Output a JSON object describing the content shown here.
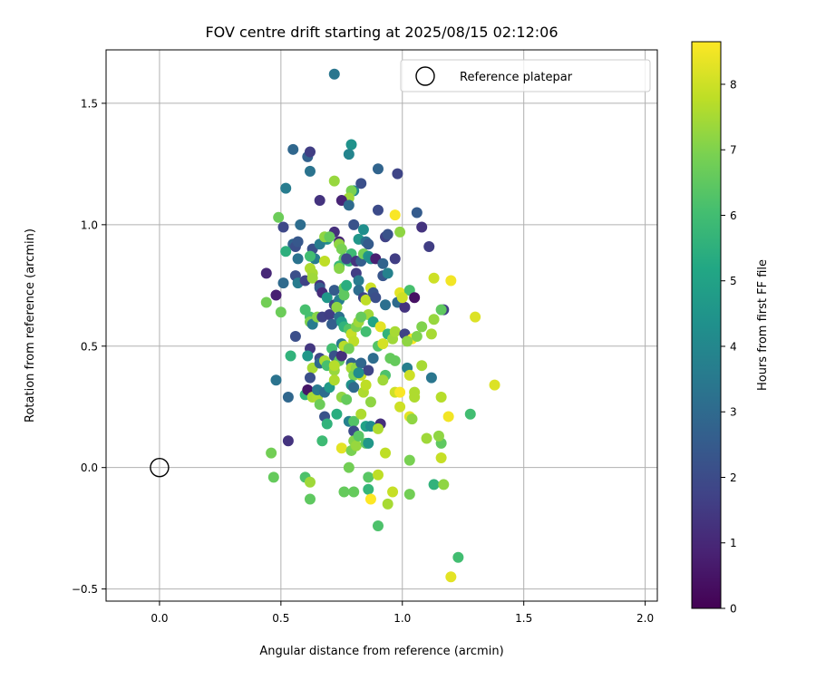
{
  "chart_data": {
    "type": "scatter",
    "title": "FOV centre drift starting at 2025/08/15 02:12:06",
    "xlabel": "Angular distance from reference (arcmin)",
    "ylabel": "Rotation from reference (arcmin)",
    "xlim": [
      -0.22,
      2.05
    ],
    "ylim": [
      -0.55,
      1.72
    ],
    "xticks": [
      "0.0",
      "0.5",
      "1.0",
      "1.5",
      "2.0"
    ],
    "yticks": [
      "−0.5",
      "0.0",
      "0.5",
      "1.0",
      "1.5"
    ],
    "grid": true,
    "legend": {
      "position": "upper-right",
      "entries": [
        "Reference platepar"
      ]
    },
    "reference_point": {
      "x": 0.0,
      "y": 0.0,
      "marker": "hollow-circle"
    },
    "colorbar": {
      "label": "Hours from first FF file",
      "colormap": "viridis",
      "range": [
        0,
        8.65
      ],
      "ticks": [
        "0",
        "1",
        "2",
        "3",
        "4",
        "5",
        "6",
        "7",
        "8"
      ]
    },
    "points": [
      [
        0.72,
        1.62,
        3.4
      ],
      [
        0.55,
        1.31,
        2.9
      ],
      [
        0.61,
        1.28,
        2.7
      ],
      [
        0.62,
        1.3,
        1.6
      ],
      [
        0.79,
        1.33,
        4.4
      ],
      [
        0.78,
        1.29,
        3.9
      ],
      [
        0.9,
        1.23,
        2.8
      ],
      [
        0.98,
        1.21,
        1.8
      ],
      [
        0.62,
        1.22,
        3.3
      ],
      [
        0.52,
        1.15,
        3.6
      ],
      [
        0.72,
        1.18,
        7.3
      ],
      [
        0.8,
        1.14,
        4.0
      ],
      [
        0.83,
        1.17,
        2.1
      ],
      [
        0.79,
        1.14,
        6.9
      ],
      [
        0.78,
        1.11,
        7.4
      ],
      [
        0.66,
        1.1,
        1.3
      ],
      [
        0.75,
        1.1,
        0.9
      ],
      [
        0.78,
        1.08,
        3.0
      ],
      [
        0.9,
        1.06,
        2.0
      ],
      [
        0.49,
        1.03,
        6.7
      ],
      [
        0.51,
        0.99,
        1.9
      ],
      [
        0.58,
        1.0,
        3.1
      ],
      [
        0.72,
        0.97,
        1.2
      ],
      [
        0.69,
        0.94,
        4.3
      ],
      [
        0.74,
        0.93,
        0.9
      ],
      [
        0.8,
        1.0,
        2.2
      ],
      [
        0.84,
        0.98,
        4.3
      ],
      [
        0.82,
        0.94,
        4.6
      ],
      [
        0.85,
        0.93,
        3.2
      ],
      [
        0.86,
        0.92,
        2.5
      ],
      [
        0.93,
        0.95,
        1.7
      ],
      [
        0.94,
        0.96,
        2.2
      ],
      [
        0.99,
        0.97,
        7.2
      ],
      [
        0.97,
        1.04,
        8.6
      ],
      [
        1.06,
        1.05,
        2.5
      ],
      [
        1.08,
        0.99,
        1.3
      ],
      [
        1.11,
        0.91,
        1.6
      ],
      [
        0.55,
        0.92,
        2.8
      ],
      [
        0.56,
        0.91,
        2.1
      ],
      [
        0.57,
        0.93,
        2.4
      ],
      [
        0.52,
        0.89,
        5.5
      ],
      [
        0.57,
        0.86,
        3.3
      ],
      [
        0.63,
        0.9,
        2.1
      ],
      [
        0.64,
        0.86,
        3.6
      ],
      [
        0.66,
        0.92,
        3.6
      ],
      [
        0.68,
        0.95,
        7.2
      ],
      [
        0.7,
        0.95,
        6.6
      ],
      [
        0.74,
        0.92,
        7.2
      ],
      [
        0.75,
        0.9,
        6.9
      ],
      [
        0.76,
        0.86,
        6.5
      ],
      [
        0.78,
        0.85,
        5.7
      ],
      [
        0.79,
        0.88,
        5.9
      ],
      [
        0.74,
        0.83,
        5.8
      ],
      [
        0.74,
        0.82,
        7.1
      ],
      [
        0.77,
        0.86,
        1.9
      ],
      [
        0.81,
        0.85,
        1.3
      ],
      [
        0.83,
        0.85,
        2.6
      ],
      [
        0.84,
        0.88,
        6.8
      ],
      [
        0.86,
        0.87,
        4.5
      ],
      [
        0.87,
        0.86,
        4.3
      ],
      [
        0.89,
        0.86,
        0.8
      ],
      [
        0.92,
        0.84,
        2.8
      ],
      [
        0.92,
        0.79,
        2.3
      ],
      [
        0.94,
        0.8,
        3.8
      ],
      [
        0.97,
        0.86,
        1.6
      ],
      [
        0.68,
        0.85,
        7.8
      ],
      [
        0.62,
        0.87,
        6.0
      ],
      [
        0.62,
        0.82,
        7.6
      ],
      [
        0.44,
        0.8,
        1.0
      ],
      [
        0.48,
        0.71,
        0.8
      ],
      [
        0.51,
        0.76,
        3.0
      ],
      [
        0.56,
        0.79,
        2.1
      ],
      [
        0.57,
        0.76,
        3.6
      ],
      [
        0.6,
        0.77,
        1.7
      ],
      [
        0.63,
        0.8,
        7.5
      ],
      [
        0.63,
        0.78,
        7.4
      ],
      [
        0.66,
        0.75,
        1.3
      ],
      [
        0.66,
        0.74,
        2.5
      ],
      [
        0.67,
        0.72,
        1.1
      ],
      [
        0.69,
        0.7,
        4.6
      ],
      [
        0.72,
        0.73,
        2.5
      ],
      [
        0.72,
        0.67,
        1.9
      ],
      [
        0.74,
        0.69,
        3.7
      ],
      [
        0.76,
        0.74,
        6.6
      ],
      [
        0.76,
        0.71,
        6.5
      ],
      [
        0.77,
        0.75,
        5.4
      ],
      [
        0.81,
        0.8,
        1.6
      ],
      [
        0.82,
        0.77,
        3.6
      ],
      [
        0.82,
        0.73,
        3.1
      ],
      [
        0.84,
        0.7,
        1.8
      ],
      [
        0.85,
        0.69,
        7.8
      ],
      [
        0.87,
        0.74,
        8.0
      ],
      [
        0.88,
        0.72,
        2.3
      ],
      [
        0.89,
        0.7,
        2.1
      ],
      [
        0.86,
        0.63,
        7.4
      ],
      [
        0.93,
        0.67,
        3.2
      ],
      [
        0.98,
        0.68,
        3.0
      ],
      [
        0.99,
        0.72,
        8.3
      ],
      [
        1.01,
        0.66,
        1.3
      ],
      [
        1.03,
        0.73,
        6.1
      ],
      [
        1.0,
        0.7,
        8.0
      ],
      [
        1.05,
        0.7,
        0.4
      ],
      [
        1.13,
        0.78,
        8.0
      ],
      [
        1.2,
        0.77,
        8.5
      ],
      [
        1.17,
        0.65,
        1.6
      ],
      [
        0.44,
        0.68,
        6.8
      ],
      [
        0.5,
        0.64,
        6.7
      ],
      [
        0.56,
        0.54,
        2.1
      ],
      [
        0.6,
        0.65,
        6.1
      ],
      [
        0.62,
        0.62,
        6.1
      ],
      [
        0.62,
        0.6,
        7.0
      ],
      [
        0.63,
        0.59,
        3.6
      ],
      [
        0.65,
        0.62,
        7.1
      ],
      [
        0.67,
        0.62,
        1.7
      ],
      [
        0.7,
        0.63,
        1.6
      ],
      [
        0.71,
        0.59,
        2.6
      ],
      [
        0.73,
        0.66,
        7.2
      ],
      [
        0.74,
        0.62,
        3.2
      ],
      [
        0.75,
        0.6,
        4.8
      ],
      [
        0.76,
        0.58,
        5.6
      ],
      [
        0.78,
        0.57,
        6.3
      ],
      [
        0.79,
        0.55,
        7.9
      ],
      [
        0.8,
        0.52,
        7.8
      ],
      [
        0.81,
        0.58,
        7.0
      ],
      [
        0.82,
        0.6,
        7.4
      ],
      [
        0.83,
        0.62,
        6.6
      ],
      [
        0.85,
        0.56,
        6.0
      ],
      [
        0.88,
        0.6,
        5.1
      ],
      [
        0.91,
        0.58,
        8.3
      ],
      [
        0.94,
        0.55,
        5.6
      ],
      [
        0.96,
        0.53,
        7.4
      ],
      [
        0.97,
        0.56,
        7.5
      ],
      [
        1.01,
        0.55,
        1.7
      ],
      [
        1.04,
        0.53,
        8.7
      ],
      [
        1.02,
        0.52,
        7.2
      ],
      [
        1.06,
        0.54,
        7.0
      ],
      [
        1.08,
        0.58,
        7.0
      ],
      [
        1.13,
        0.61,
        7.3
      ],
      [
        1.16,
        0.65,
        6.5
      ],
      [
        1.3,
        0.62,
        8.2
      ],
      [
        0.62,
        0.49,
        1.4
      ],
      [
        0.61,
        0.46,
        4.6
      ],
      [
        0.54,
        0.46,
        5.6
      ],
      [
        0.63,
        0.41,
        7.5
      ],
      [
        0.66,
        0.45,
        1.9
      ],
      [
        0.66,
        0.43,
        3.0
      ],
      [
        0.68,
        0.44,
        7.5
      ],
      [
        0.69,
        0.42,
        6.1
      ],
      [
        0.71,
        0.49,
        6.0
      ],
      [
        0.72,
        0.46,
        2.2
      ],
      [
        0.72,
        0.4,
        7.3
      ],
      [
        0.74,
        0.44,
        6.5
      ],
      [
        0.75,
        0.51,
        3.5
      ],
      [
        0.75,
        0.46,
        1.2
      ],
      [
        0.76,
        0.5,
        7.7
      ],
      [
        0.78,
        0.49,
        6.8
      ],
      [
        0.79,
        0.43,
        2.8
      ],
      [
        0.79,
        0.41,
        7.5
      ],
      [
        0.8,
        0.38,
        6.9
      ],
      [
        0.81,
        0.41,
        7.2
      ],
      [
        0.83,
        0.43,
        2.9
      ],
      [
        0.83,
        0.38,
        7.9
      ],
      [
        0.86,
        0.4,
        1.8
      ],
      [
        0.88,
        0.45,
        3.1
      ],
      [
        0.9,
        0.5,
        6.3
      ],
      [
        0.92,
        0.51,
        8.1
      ],
      [
        0.95,
        0.45,
        6.6
      ],
      [
        0.97,
        0.44,
        6.6
      ],
      [
        1.02,
        0.41,
        3.7
      ],
      [
        1.03,
        0.38,
        8.0
      ],
      [
        1.08,
        0.42,
        7.5
      ],
      [
        1.12,
        0.37,
        3.4
      ],
      [
        1.12,
        0.55,
        7.5
      ],
      [
        0.48,
        0.36,
        3.3
      ],
      [
        0.53,
        0.29,
        2.9
      ],
      [
        0.6,
        0.3,
        5.6
      ],
      [
        0.61,
        0.32,
        0.5
      ],
      [
        0.62,
        0.37,
        2.1
      ],
      [
        0.63,
        0.29,
        7.5
      ],
      [
        0.65,
        0.29,
        7.6
      ],
      [
        0.65,
        0.32,
        3.5
      ],
      [
        0.66,
        0.26,
        6.7
      ],
      [
        0.68,
        0.31,
        3.1
      ],
      [
        0.7,
        0.33,
        4.7
      ],
      [
        0.72,
        0.36,
        7.6
      ],
      [
        0.72,
        0.42,
        7.7
      ],
      [
        0.75,
        0.29,
        7.2
      ],
      [
        0.77,
        0.28,
        6.6
      ],
      [
        0.79,
        0.34,
        4.4
      ],
      [
        0.8,
        0.33,
        3.0
      ],
      [
        0.82,
        0.39,
        4.2
      ],
      [
        0.84,
        0.31,
        7.6
      ],
      [
        0.85,
        0.34,
        7.8
      ],
      [
        0.87,
        0.27,
        7.2
      ],
      [
        0.93,
        0.38,
        6.2
      ],
      [
        0.92,
        0.36,
        7.4
      ],
      [
        0.97,
        0.31,
        8.0
      ],
      [
        0.99,
        0.31,
        8.6
      ],
      [
        1.03,
        0.21,
        8.3
      ],
      [
        1.05,
        0.31,
        7.6
      ],
      [
        1.05,
        0.29,
        7.6
      ],
      [
        1.16,
        0.29,
        7.7
      ],
      [
        1.19,
        0.21,
        8.5
      ],
      [
        1.38,
        0.34,
        8.2
      ],
      [
        0.99,
        0.25,
        8.0
      ],
      [
        1.04,
        0.2,
        7.2
      ],
      [
        0.68,
        0.21,
        2.2
      ],
      [
        0.69,
        0.18,
        5.6
      ],
      [
        0.73,
        0.22,
        5.4
      ],
      [
        0.78,
        0.19,
        3.8
      ],
      [
        0.8,
        0.19,
        6.3
      ],
      [
        0.8,
        0.15,
        2.0
      ],
      [
        0.83,
        0.22,
        7.6
      ],
      [
        0.85,
        0.17,
        5.0
      ],
      [
        0.87,
        0.17,
        4.2
      ],
      [
        0.91,
        0.18,
        1.2
      ],
      [
        0.9,
        0.16,
        7.6
      ],
      [
        0.67,
        0.11,
        5.9
      ],
      [
        0.75,
        0.08,
        8.3
      ],
      [
        0.79,
        0.07,
        6.9
      ],
      [
        0.8,
        0.11,
        7.1
      ],
      [
        0.81,
        0.09,
        7.3
      ],
      [
        0.82,
        0.13,
        6.4
      ],
      [
        0.85,
        0.1,
        6.5
      ],
      [
        0.86,
        0.1,
        4.6
      ],
      [
        0.93,
        0.06,
        7.8
      ],
      [
        1.16,
        0.1,
        6.5
      ],
      [
        1.1,
        0.12,
        7.4
      ],
      [
        1.16,
        0.04,
        7.9
      ],
      [
        1.28,
        0.22,
        6.0
      ],
      [
        1.15,
        0.13,
        7.2
      ],
      [
        0.53,
        0.11,
        1.3
      ],
      [
        0.46,
        0.06,
        6.8
      ],
      [
        0.78,
        0.0,
        6.8
      ],
      [
        1.03,
        0.03,
        6.9
      ],
      [
        0.47,
        -0.04,
        6.6
      ],
      [
        0.6,
        -0.04,
        6.2
      ],
      [
        0.62,
        -0.06,
        7.4
      ],
      [
        0.76,
        -0.1,
        6.6
      ],
      [
        0.8,
        -0.1,
        6.6
      ],
      [
        0.86,
        -0.04,
        6.4
      ],
      [
        0.9,
        -0.03,
        7.8
      ],
      [
        0.86,
        -0.09,
        5.7
      ],
      [
        0.87,
        -0.13,
        8.7
      ],
      [
        0.94,
        -0.15,
        7.5
      ],
      [
        0.96,
        -0.1,
        7.9
      ],
      [
        1.03,
        -0.11,
        6.8
      ],
      [
        1.13,
        -0.07,
        5.6
      ],
      [
        1.17,
        -0.07,
        7.2
      ],
      [
        0.62,
        -0.13,
        6.5
      ],
      [
        0.9,
        -0.24,
        6.2
      ],
      [
        1.23,
        -0.37,
        6.0
      ],
      [
        1.2,
        -0.45,
        8.3
      ]
    ]
  }
}
